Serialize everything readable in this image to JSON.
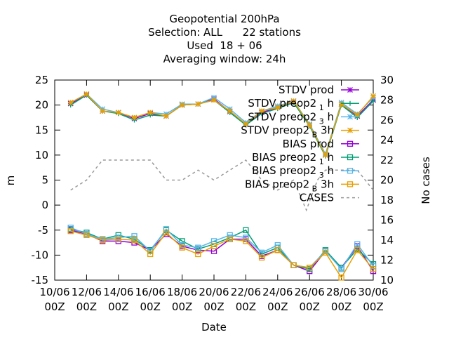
{
  "chart_data": {
    "type": "line",
    "title_lines": [
      "Geopotential 200hPa",
      "Selection: ALL      22 stations",
      "Used  18 + 06",
      "Averaging window: 24h"
    ],
    "xlabel": "Date",
    "ylabel": "m",
    "y2label": "No cases",
    "ylim": [
      -15,
      25
    ],
    "y2lim": [
      10,
      30
    ],
    "yticks": [
      -15,
      -10,
      -5,
      0,
      5,
      10,
      15,
      20,
      25
    ],
    "y2ticks": [
      10,
      12,
      14,
      16,
      18,
      20,
      22,
      24,
      26,
      28,
      30
    ],
    "xrange_days": [
      10,
      30
    ],
    "xticks": [
      {
        "day": 10,
        "line1": "10/06",
        "line2": "00Z"
      },
      {
        "day": 12,
        "line1": "12/06",
        "line2": "00Z"
      },
      {
        "day": 14,
        "line1": "14/06",
        "line2": "00Z"
      },
      {
        "day": 16,
        "line1": "16/06",
        "line2": "00Z"
      },
      {
        "day": 18,
        "line1": "18/06",
        "line2": "00Z"
      },
      {
        "day": 20,
        "line1": "20/06",
        "line2": "00Z"
      },
      {
        "day": 22,
        "line1": "22/06",
        "line2": "00Z"
      },
      {
        "day": 24,
        "line1": "24/06",
        "line2": "00Z"
      },
      {
        "day": 26,
        "line1": "26/06",
        "line2": "00Z"
      },
      {
        "day": 28,
        "line1": "28/06",
        "line2": "00Z"
      },
      {
        "day": 30,
        "line1": "30/06",
        "line2": "00Z"
      }
    ],
    "x": [
      11,
      12,
      13,
      14,
      15,
      16,
      17,
      18,
      19,
      20,
      21,
      22,
      23,
      24,
      25,
      26,
      27,
      28,
      29,
      30
    ],
    "series": [
      {
        "name": "STDV prod",
        "axis": "y",
        "color": "#9400d3",
        "marker": "star",
        "values": [
          20.3,
          22.0,
          18.8,
          18.5,
          17.3,
          18.3,
          17.8,
          20.0,
          20.2,
          21.2,
          18.7,
          16.2,
          18.5,
          19.5,
          20.5,
          16.0,
          10.0,
          20.2,
          17.8,
          21.0
        ]
      },
      {
        "name": "STDV preop2_1h",
        "axis": "y",
        "color": "#009e73",
        "marker": "plus",
        "values": [
          20.0,
          22.0,
          18.8,
          18.3,
          17.0,
          18.0,
          17.8,
          20.0,
          20.2,
          21.0,
          18.5,
          16.0,
          18.3,
          19.3,
          20.5,
          15.8,
          9.8,
          20.0,
          17.5,
          20.8
        ]
      },
      {
        "name": "STDV preop2_3h",
        "axis": "y",
        "color": "#56b4e9",
        "marker": "star",
        "values": [
          20.5,
          22.2,
          19.2,
          18.5,
          17.5,
          18.5,
          18.2,
          20.2,
          20.2,
          21.5,
          19.2,
          16.5,
          18.8,
          19.8,
          20.8,
          16.2,
          10.2,
          20.5,
          18.2,
          21.5
        ]
      },
      {
        "name": "STDV preop2_B3h",
        "axis": "y",
        "color": "#e69f00",
        "marker": "star",
        "values": [
          20.5,
          22.2,
          18.8,
          18.5,
          17.5,
          18.5,
          17.8,
          20.0,
          20.2,
          21.0,
          18.8,
          16.2,
          18.8,
          19.5,
          20.8,
          16.0,
          10.0,
          20.2,
          18.0,
          21.8
        ]
      },
      {
        "name": "BIAS prod",
        "axis": "y",
        "color": "#9400d3",
        "marker": "square",
        "values": [
          -5.0,
          -5.8,
          -7.2,
          -7.2,
          -7.5,
          -9.0,
          -5.8,
          -8.2,
          -9.0,
          -9.2,
          -6.8,
          -6.8,
          -10.2,
          -9.0,
          -12.0,
          -13.2,
          -9.2,
          -12.5,
          -8.2,
          -13.2
        ]
      },
      {
        "name": "BIAS preop2_1h",
        "axis": "y",
        "color": "#009e73",
        "marker": "square",
        "values": [
          -4.8,
          -5.5,
          -6.8,
          -6.0,
          -6.8,
          -9.0,
          -5.0,
          -7.2,
          -8.8,
          -7.8,
          -6.5,
          -5.0,
          -9.8,
          -8.5,
          -12.0,
          -12.8,
          -9.0,
          -12.5,
          -8.8,
          -11.8
        ]
      },
      {
        "name": "BIAS preop2_3h",
        "axis": "y",
        "color": "#56b4e9",
        "marker": "square",
        "values": [
          -4.5,
          -5.8,
          -6.8,
          -6.5,
          -6.2,
          -9.2,
          -4.8,
          -8.0,
          -8.5,
          -7.2,
          -6.0,
          -6.5,
          -9.5,
          -8.0,
          -12.0,
          -12.5,
          -9.2,
          -12.8,
          -7.8,
          -12.2
        ]
      },
      {
        "name": "BIAS preop2_B3h",
        "axis": "y",
        "color": "#e69f00",
        "marker": "square",
        "values": [
          -5.2,
          -6.0,
          -7.0,
          -6.8,
          -7.0,
          -9.8,
          -5.5,
          -8.5,
          -9.8,
          -8.2,
          -6.8,
          -7.2,
          -10.5,
          -9.0,
          -12.0,
          -12.5,
          -9.5,
          -14.5,
          -9.0,
          -12.8
        ]
      },
      {
        "name": "CASES",
        "axis": "y2",
        "color": "#999999",
        "marker": "none",
        "dashed": true,
        "x": [
          11,
          12,
          13,
          14,
          15,
          16,
          17,
          18,
          19,
          20,
          21,
          22,
          23,
          24,
          25,
          25.8,
          26.5,
          27,
          28,
          29,
          30
        ],
        "values": [
          19,
          20,
          22,
          22,
          22,
          22,
          20,
          20,
          21,
          20,
          21,
          22,
          20,
          19,
          20,
          17,
          20,
          21,
          21,
          21,
          19
        ]
      }
    ],
    "legend": [
      {
        "label": "STDV prod",
        "series": 0
      },
      {
        "label": "STDV preop2",
        "sub": "1",
        "suffix": "h",
        "series": 1
      },
      {
        "label": "STDV preop2",
        "sub": "3",
        "suffix": "h",
        "series": 2
      },
      {
        "label": "STDV preop2",
        "sub": "B",
        "suffix": "3h",
        "series": 3
      },
      {
        "label": "BIAS prod",
        "series": 4
      },
      {
        "label": "BIAS preop2",
        "sub": "1",
        "suffix": "h",
        "series": 5
      },
      {
        "label": "BIAS preop2",
        "sub": "3",
        "suffix": "h",
        "series": 6
      },
      {
        "label": "BIAS preop2",
        "sub": "B",
        "suffix": "3h",
        "series": 7
      },
      {
        "label": "CASES",
        "series": 8
      }
    ],
    "legend_position": "top-right",
    "grid": false
  }
}
